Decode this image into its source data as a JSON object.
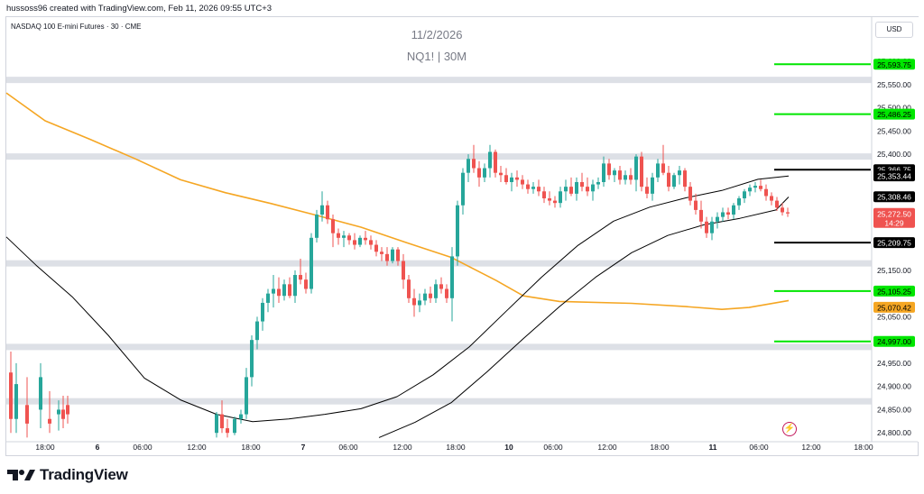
{
  "header": {
    "credit": "hussoss96 created with TradingView.com, Feb 11, 2026 09:55 UTC+3"
  },
  "symbol_line": "NASDAQ 100 E-mini Futures · 30 · CME",
  "watermark": {
    "date": "11/2/2026",
    "symbol": "NQ1! | 30M"
  },
  "currency_label": "USD",
  "brand": {
    "name": "TradingView"
  },
  "colors": {
    "up": "#26a69a",
    "down": "#ef5350",
    "ma": "#f5a623",
    "band": "#000000",
    "level_green": "#00e600",
    "level_black": "#000000",
    "zone": "#dde0e6"
  },
  "chart_data": {
    "type": "candlestick",
    "symbol": "NQ1!",
    "timeframe": "30",
    "y_axis": {
      "min": 24775,
      "max": 25650,
      "ticks": [
        "25,600.00",
        "25,550.00",
        "25,500.00",
        "25,450.00",
        "25,400.00",
        "25,150.00",
        "25,050.00",
        "24,950.00",
        "24,900.00",
        "24,850.00",
        "24,800.00"
      ]
    },
    "x_axis": {
      "labels": [
        "18:00",
        "6",
        "06:00",
        "12:00",
        "18:00",
        "7",
        "06:00",
        "12:00",
        "18:00",
        "10",
        "06:00",
        "12:00",
        "18:00",
        "11",
        "06:00",
        "12:00",
        "18:00"
      ]
    },
    "zones": [
      25560,
      25395,
      25165,
      24985,
      24868
    ],
    "levels": [
      {
        "price": 25593.75,
        "label": "25,593.75",
        "color": "green"
      },
      {
        "price": 25486.25,
        "label": "25,486.25",
        "color": "green"
      },
      {
        "price": 25366.75,
        "label": "25,366.75",
        "color": "black"
      },
      {
        "price": 25209.75,
        "label": "25,209.75",
        "color": "black"
      },
      {
        "price": 25105.25,
        "label": "25,105.25",
        "color": "green"
      },
      {
        "price": 24997.0,
        "label": "24,997.00",
        "color": "green"
      }
    ],
    "price_labels": [
      {
        "price": 25353.44,
        "label": "25,353.44",
        "style": "black"
      },
      {
        "price": 25308.46,
        "label": "25,308.46",
        "style": "black"
      },
      {
        "price": 25272.5,
        "label": "25,272.50",
        "sub": "14:29",
        "style": "red"
      },
      {
        "price": 25070.42,
        "label": "25,070.42",
        "style": "orange"
      }
    ],
    "ma": [
      [
        7,
        25532
      ],
      [
        50,
        25472
      ],
      [
        100,
        25432
      ],
      [
        150,
        25390
      ],
      [
        200,
        25345
      ],
      [
        250,
        25317
      ],
      [
        300,
        25294
      ],
      [
        350,
        25269
      ],
      [
        400,
        25243
      ],
      [
        450,
        25210
      ],
      [
        500,
        25178
      ],
      [
        550,
        25128
      ],
      [
        580,
        25095
      ],
      [
        620,
        25083
      ],
      [
        700,
        25079
      ],
      [
        760,
        25072
      ],
      [
        800,
        25066
      ],
      [
        830,
        25070
      ],
      [
        874,
        25085
      ]
    ],
    "band_upper": [
      [
        7,
        25222
      ],
      [
        40,
        25161
      ],
      [
        80,
        25093
      ],
      [
        120,
        25010
      ],
      [
        160,
        24918
      ],
      [
        200,
        24871
      ],
      [
        240,
        24840
      ],
      [
        280,
        24824
      ],
      [
        320,
        24830
      ],
      [
        360,
        24840
      ],
      [
        400,
        24852
      ],
      [
        440,
        24878
      ],
      [
        480,
        24925
      ],
      [
        520,
        24985
      ],
      [
        560,
        25060
      ],
      [
        600,
        25135
      ],
      [
        640,
        25203
      ],
      [
        680,
        25256
      ],
      [
        720,
        25286
      ],
      [
        760,
        25306
      ],
      [
        800,
        25322
      ],
      [
        840,
        25346
      ],
      [
        874,
        25353
      ]
    ],
    "band_lower": [
      [
        420,
        24790
      ],
      [
        460,
        24823
      ],
      [
        500,
        24865
      ],
      [
        540,
        24932
      ],
      [
        580,
        25003
      ],
      [
        620,
        25072
      ],
      [
        660,
        25135
      ],
      [
        700,
        25188
      ],
      [
        740,
        25225
      ],
      [
        780,
        25248
      ],
      [
        820,
        25262
      ],
      [
        860,
        25280
      ],
      [
        874,
        25308
      ]
    ],
    "candles": [
      [
        12,
        24930,
        24975,
        24800,
        24830
      ],
      [
        18,
        24830,
        24950,
        24800,
        24905
      ],
      [
        30,
        24860,
        24920,
        24790,
        24820
      ],
      [
        45,
        24850,
        24950,
        24810,
        24920
      ],
      [
        55,
        24830,
        24890,
        24800,
        24820
      ],
      [
        65,
        24840,
        24870,
        24805,
        24850
      ],
      [
        70,
        24850,
        24880,
        24810,
        24830
      ],
      [
        75,
        24860,
        24880,
        24820,
        24840
      ],
      [
        240,
        24800,
        24845,
        24790,
        24840
      ],
      [
        246,
        24840,
        24870,
        24800,
        24810
      ],
      [
        252,
        24810,
        24830,
        24790,
        24800
      ],
      [
        260,
        24800,
        24835,
        24795,
        24830
      ],
      [
        267,
        24830,
        24850,
        24820,
        24840
      ],
      [
        273,
        24840,
        24940,
        24830,
        24920
      ],
      [
        279,
        24920,
        25010,
        24900,
        25000
      ],
      [
        285,
        25000,
        25050,
        24980,
        25040
      ],
      [
        291,
        25040,
        25090,
        25020,
        25080
      ],
      [
        297,
        25080,
        25110,
        25060,
        25100
      ],
      [
        303,
        25100,
        25140,
        25070,
        25110
      ],
      [
        309,
        25110,
        25135,
        25080,
        25095
      ],
      [
        315,
        25095,
        25130,
        25085,
        25120
      ],
      [
        321,
        25120,
        25135,
        25090,
        25095
      ],
      [
        327,
        25095,
        25150,
        25080,
        25140
      ],
      [
        333,
        25140,
        25175,
        25120,
        25130
      ],
      [
        339,
        25130,
        25145,
        25100,
        25110
      ],
      [
        345,
        25110,
        25230,
        25100,
        25220
      ],
      [
        351,
        25220,
        25280,
        25210,
        25270
      ],
      [
        357,
        25270,
        25320,
        25255,
        25290
      ],
      [
        363,
        25290,
        25300,
        25250,
        25260
      ],
      [
        369,
        25260,
        25270,
        25200,
        25230
      ],
      [
        375,
        25230,
        25240,
        25205,
        25220
      ],
      [
        381,
        25220,
        25235,
        25200,
        25225
      ],
      [
        387,
        25225,
        25230,
        25205,
        25215
      ],
      [
        393,
        25215,
        25230,
        25195,
        25205
      ],
      [
        399,
        25205,
        25225,
        25200,
        25220
      ],
      [
        405,
        25220,
        25235,
        25205,
        25215
      ],
      [
        411,
        25215,
        25225,
        25195,
        25205
      ],
      [
        417,
        25205,
        25215,
        25180,
        25190
      ],
      [
        423,
        25190,
        25200,
        25170,
        25185
      ],
      [
        429,
        25185,
        25200,
        25160,
        25170
      ],
      [
        435,
        25170,
        25200,
        25165,
        25195
      ],
      [
        441,
        25195,
        25200,
        25160,
        25170
      ],
      [
        447,
        25170,
        25185,
        25110,
        25130
      ],
      [
        453,
        25130,
        25140,
        25080,
        25090
      ],
      [
        459,
        25090,
        25110,
        25050,
        25075
      ],
      [
        465,
        25075,
        25100,
        25060,
        25085
      ],
      [
        471,
        25085,
        25110,
        25075,
        25100
      ],
      [
        477,
        25100,
        25115,
        25080,
        25090
      ],
      [
        483,
        25090,
        25130,
        25080,
        25120
      ],
      [
        489,
        25120,
        25135,
        25100,
        25110
      ],
      [
        495,
        25110,
        25120,
        25080,
        25090
      ],
      [
        501,
        25090,
        25200,
        25040,
        25180
      ],
      [
        507,
        25180,
        25300,
        25160,
        25290
      ],
      [
        513,
        25290,
        25370,
        25270,
        25360
      ],
      [
        519,
        25360,
        25400,
        25340,
        25390
      ],
      [
        525,
        25390,
        25420,
        25360,
        25370
      ],
      [
        531,
        25370,
        25385,
        25330,
        25350
      ],
      [
        537,
        25350,
        25380,
        25340,
        25370
      ],
      [
        543,
        25370,
        25420,
        25350,
        25405
      ],
      [
        549,
        25405,
        25410,
        25350,
        25360
      ],
      [
        555,
        25360,
        25375,
        25340,
        25355
      ],
      [
        561,
        25355,
        25370,
        25335,
        25340
      ],
      [
        567,
        25340,
        25360,
        25320,
        25350
      ],
      [
        573,
        25350,
        25365,
        25330,
        25345
      ],
      [
        579,
        25345,
        25355,
        25325,
        25335
      ],
      [
        585,
        25335,
        25345,
        25315,
        25325
      ],
      [
        591,
        25325,
        25340,
        25315,
        25330
      ],
      [
        597,
        25330,
        25345,
        25310,
        25320
      ],
      [
        603,
        25320,
        25330,
        25295,
        25305
      ],
      [
        609,
        25305,
        25320,
        25290,
        25300
      ],
      [
        615,
        25300,
        25310,
        25285,
        25295
      ],
      [
        621,
        25295,
        25330,
        25285,
        25320
      ],
      [
        627,
        25320,
        25345,
        25300,
        25330
      ],
      [
        633,
        25330,
        25350,
        25310,
        25315
      ],
      [
        639,
        25315,
        25350,
        25300,
        25340
      ],
      [
        645,
        25340,
        25360,
        25320,
        25330
      ],
      [
        651,
        25330,
        25350,
        25310,
        25320
      ],
      [
        657,
        25320,
        25345,
        25300,
        25335
      ],
      [
        663,
        25335,
        25350,
        25325,
        25340
      ],
      [
        669,
        25340,
        25395,
        25330,
        25380
      ],
      [
        675,
        25380,
        25390,
        25345,
        25355
      ],
      [
        681,
        25355,
        25370,
        25340,
        25365
      ],
      [
        687,
        25365,
        25375,
        25335,
        25345
      ],
      [
        693,
        25345,
        25365,
        25335,
        25355
      ],
      [
        699,
        25355,
        25370,
        25335,
        25345
      ],
      [
        705,
        25345,
        25400,
        25320,
        25395
      ],
      [
        711,
        25395,
        25405,
        25320,
        25330
      ],
      [
        717,
        25330,
        25350,
        25305,
        25315
      ],
      [
        723,
        25315,
        25360,
        25300,
        25350
      ],
      [
        729,
        25350,
        25390,
        25340,
        25380
      ],
      [
        735,
        25380,
        25420,
        25355,
        25360
      ],
      [
        741,
        25360,
        25375,
        25320,
        25330
      ],
      [
        747,
        25330,
        25360,
        25325,
        25355
      ],
      [
        753,
        25355,
        25375,
        25335,
        25365
      ],
      [
        759,
        25365,
        25370,
        25320,
        25330
      ],
      [
        765,
        25330,
        25340,
        25290,
        25300
      ],
      [
        771,
        25300,
        25315,
        25270,
        25280
      ],
      [
        777,
        25280,
        25300,
        25240,
        25255
      ],
      [
        783,
        25255,
        25265,
        25220,
        25230
      ],
      [
        789,
        25230,
        25265,
        25215,
        25255
      ],
      [
        795,
        25255,
        25275,
        25240,
        25265
      ],
      [
        801,
        25265,
        25285,
        25255,
        25275
      ],
      [
        807,
        25275,
        25285,
        25260,
        25270
      ],
      [
        813,
        25270,
        25295,
        25260,
        25290
      ],
      [
        819,
        25290,
        25310,
        25280,
        25305
      ],
      [
        825,
        25305,
        25325,
        25295,
        25320
      ],
      [
        831,
        25320,
        25335,
        25310,
        25328
      ],
      [
        837,
        25328,
        25340,
        25318,
        25332
      ],
      [
        843,
        25332,
        25345,
        25320,
        25325
      ],
      [
        849,
        25325,
        25335,
        25300,
        25310
      ],
      [
        855,
        25310,
        25318,
        25290,
        25300
      ],
      [
        861,
        25300,
        25308,
        25278,
        25285
      ],
      [
        867,
        25285,
        25295,
        25268,
        25275
      ],
      [
        873,
        25275,
        25285,
        25265,
        25272.5
      ]
    ]
  }
}
